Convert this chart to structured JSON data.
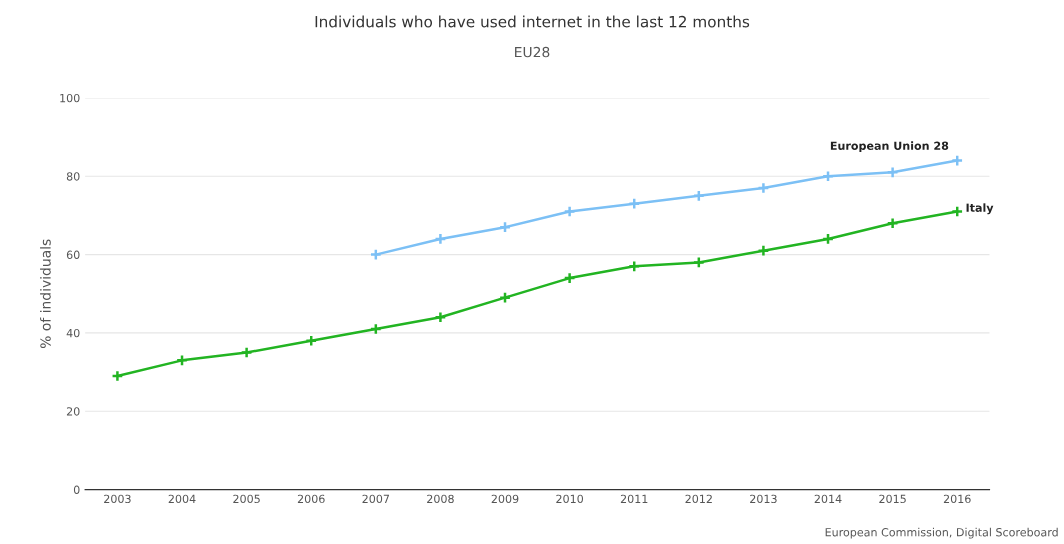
{
  "chart_data": {
    "type": "line",
    "title": "Individuals who have used internet in the last 12 months",
    "subtitle": "EU28",
    "ylabel": "% of individuals",
    "categories": [
      "2003",
      "2004",
      "2005",
      "2006",
      "2007",
      "2008",
      "2009",
      "2010",
      "2011",
      "2012",
      "2013",
      "2014",
      "2015",
      "2016"
    ],
    "series": [
      {
        "name": "European Union 28",
        "color": "#7cc0f5",
        "values": [
          null,
          null,
          null,
          null,
          60,
          64,
          67,
          71,
          73,
          75,
          77,
          80,
          81,
          84
        ]
      },
      {
        "name": "Italy",
        "color": "#22b422",
        "values": [
          29,
          33,
          35,
          38,
          41,
          44,
          49,
          54,
          57,
          58,
          61,
          64,
          68,
          71
        ]
      }
    ],
    "ylim": [
      0,
      100
    ],
    "yticks": [
      0,
      20,
      40,
      60,
      80,
      100
    ],
    "grid": "y",
    "legend": false,
    "marker": "cross",
    "line_style": "solid",
    "annotations": [
      "European Commission, Digital Scoreboard"
    ]
  }
}
